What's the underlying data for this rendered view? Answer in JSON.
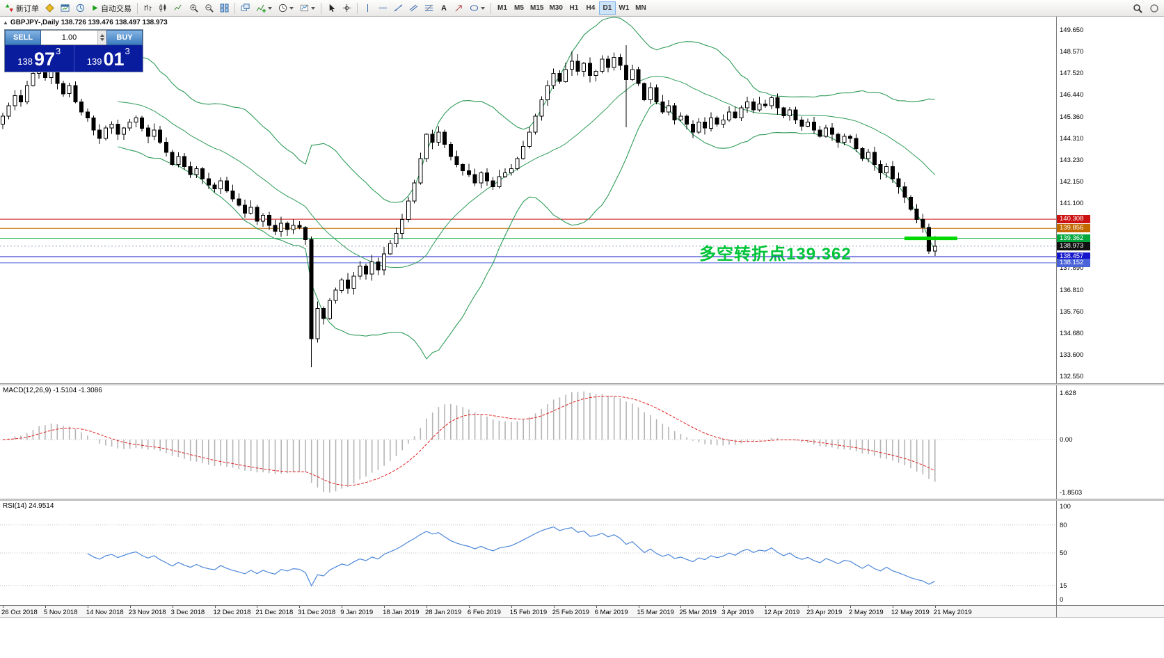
{
  "toolbar": {
    "new_order_label": "新订单",
    "autotrading_label": "自动交易",
    "text_tool_label": "A",
    "timeframes": [
      "M1",
      "M5",
      "M15",
      "M30",
      "H1",
      "H4",
      "D1",
      "W1",
      "MN"
    ],
    "active_timeframe": "D1"
  },
  "symbol_header": {
    "collapse": "▲",
    "text": "GBPJPY-,Daily  138.726 139.476 138.497 138.973"
  },
  "trade_panel": {
    "sell_label": "SELL",
    "buy_label": "BUY",
    "volume": "1.00",
    "bid": {
      "prefix": "138",
      "big": "97",
      "sup": "3"
    },
    "ask": {
      "prefix": "139",
      "big": "01",
      "sup": "3"
    }
  },
  "annotation": {
    "text": "多空转折点139.362",
    "color": "#00c438"
  },
  "chart_data": [
    {
      "type": "candlestick",
      "symbol": "GBPJPY-",
      "timeframe": "Daily",
      "title": "GBPJPY-,Daily",
      "ohlc_current": {
        "open": 138.726,
        "high": 139.476,
        "low": 138.497,
        "close": 138.973
      },
      "y_max": 149.65,
      "y_min": 132.55,
      "y_ticks": [
        "149.650",
        "148.570",
        "147.520",
        "146.440",
        "145.360",
        "144.310",
        "143.230",
        "142.150",
        "141.100",
        "137.890",
        "136.810",
        "135.760",
        "134.680",
        "133.600",
        "132.550"
      ],
      "date_labels": [
        "26 Oct 2018",
        "5 Nov 2018",
        "14 Nov 2018",
        "23 Nov 2018",
        "3 Dec 2018",
        "12 Dec 2018",
        "21 Dec 2018",
        "31 Dec 2018",
        "9 Jan 2019",
        "18 Jan 2019",
        "28 Jan 2019",
        "6 Feb 2019",
        "15 Feb 2019",
        "25 Feb 2019",
        "6 Mar 2019",
        "15 Mar 2019",
        "25 Mar 2019",
        "3 Apr 2019",
        "12 Apr 2019",
        "23 Apr 2019",
        "2 May 2019",
        "12 May 2019",
        "21 May 2019"
      ],
      "date_step": 7,
      "first_open": 145.0,
      "closes": [
        145.4,
        145.9,
        146.4,
        146.1,
        146.9,
        147.5,
        148.1,
        147.3,
        147.8,
        147.0,
        146.5,
        146.9,
        146.1,
        145.6,
        145.3,
        144.7,
        144.3,
        144.8,
        145.0,
        144.5,
        144.8,
        145.1,
        145.3,
        144.8,
        144.4,
        144.7,
        144.1,
        143.6,
        143.0,
        143.4,
        142.9,
        142.5,
        142.8,
        142.3,
        142.0,
        141.8,
        142.2,
        141.7,
        141.3,
        141.0,
        140.6,
        140.9,
        140.2,
        140.5,
        140.0,
        139.7,
        140.1,
        139.8,
        140.0,
        139.9,
        139.3,
        134.4,
        135.9,
        135.4,
        136.3,
        136.8,
        137.3,
        136.9,
        137.5,
        138.0,
        137.6,
        138.2,
        137.8,
        138.6,
        139.1,
        139.6,
        140.3,
        141.2,
        142.1,
        143.3,
        144.5,
        144.1,
        144.6,
        144.0,
        143.4,
        143.0,
        142.7,
        142.5,
        142.1,
        142.6,
        142.2,
        141.9,
        142.4,
        142.6,
        142.8,
        143.3,
        143.9,
        144.6,
        145.4,
        146.2,
        146.9,
        147.5,
        147.1,
        147.7,
        148.1,
        147.6,
        148.0,
        147.4,
        147.6,
        148.2,
        147.8,
        148.3,
        147.9,
        147.2,
        147.7,
        147.0,
        146.2,
        146.8,
        146.1,
        145.6,
        145.9,
        145.2,
        145.4,
        145.0,
        144.6,
        145.1,
        144.8,
        145.3,
        145.0,
        145.2,
        145.6,
        145.3,
        145.8,
        146.1,
        145.7,
        146.0,
        145.9,
        146.3,
        145.8,
        145.4,
        145.7,
        145.2,
        144.9,
        145.1,
        144.7,
        144.4,
        144.8,
        144.5,
        144.1,
        144.4,
        144.3,
        143.8,
        143.3,
        143.6,
        143.0,
        142.6,
        142.9,
        142.3,
        141.9,
        141.4,
        140.8,
        140.3,
        139.9,
        138.726,
        138.973
      ],
      "wick_overrides": {
        "6": {
          "high": 148.8
        },
        "51": {
          "high": 139.45,
          "low": 133.0
        },
        "94": {
          "high": 148.6
        },
        "103": {
          "high": 148.9,
          "low": 144.85
        },
        "154": {
          "high": 139.476,
          "low": 138.497
        }
      },
      "bollinger": {
        "period": 20,
        "deviation": 2,
        "color": "#2e9b57"
      },
      "levels": [
        {
          "price": 140.308,
          "label": "140.308",
          "color": "#cc1111"
        },
        {
          "price": 139.856,
          "label": "139.856",
          "color": "#c26a00"
        },
        {
          "price": 139.362,
          "label": "139.362",
          "color": "#00a83c"
        },
        {
          "price": 138.457,
          "label": "138.457",
          "color": "#1515cc"
        },
        {
          "price": 138.152,
          "label": "138.152",
          "color": "#4a63d8"
        }
      ],
      "current_price": {
        "value": 138.973,
        "label": "138.973",
        "color": "#111111"
      },
      "highlight_segment": {
        "price": 139.362,
        "x_from": 1300,
        "x_to": 1376,
        "color": "#00d800",
        "width": 5
      }
    },
    {
      "type": "line",
      "name": "MACD",
      "params": "12,26,9",
      "header": "MACD(12,26,9) -1.5104 -1.3086",
      "macd_value": -1.5104,
      "signal_value": -1.3086,
      "scale_labels": [
        "1.628",
        "0.00",
        "-1.8503"
      ],
      "histogram_color": "#b4b4b4",
      "signal_color": "#e02020",
      "derived_from": "chart_data.0.closes"
    },
    {
      "type": "line",
      "name": "RSI",
      "period": 14,
      "header": "RSI(14) 24.9514",
      "value": 24.9514,
      "scale_labels": [
        "100",
        "80",
        "50",
        "15",
        "0"
      ],
      "level_lines": [
        80,
        50,
        15
      ],
      "line_color": "#4a86d8",
      "derived_from": "chart_data.0.closes"
    }
  ]
}
